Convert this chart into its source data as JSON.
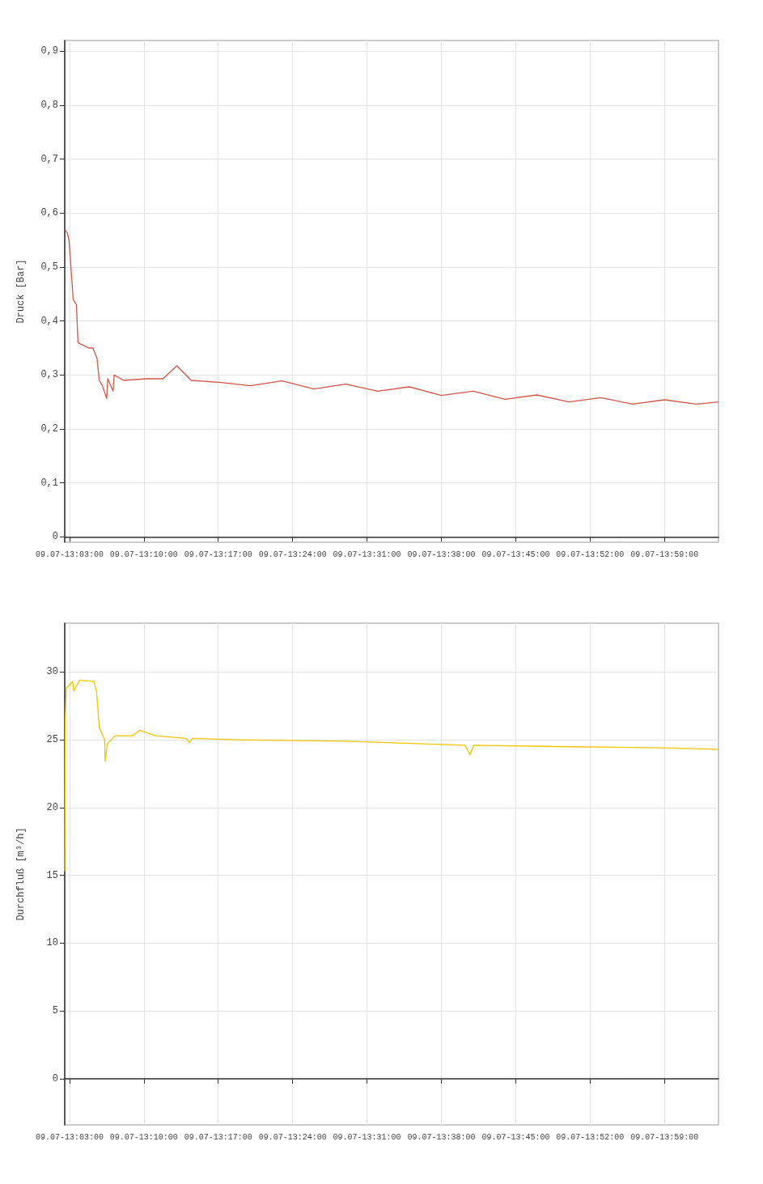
{
  "chart_data": [
    {
      "type": "line",
      "ylabel": "Druck [Bar]",
      "grid": true,
      "marker": "none",
      "line_style": "solid",
      "xlim": [
        "--07-09T13:02:33",
        "--07-09T14:04:05"
      ],
      "ylim": [
        -0.01,
        0.92
      ],
      "xticks": [
        {
          "value": "--07-09T13:03",
          "label": "09.07-13:03:00"
        },
        {
          "value": "--07-09T13:10",
          "label": "09.07-13:10:00"
        },
        {
          "value": "--07-09T13:17",
          "label": "09.07-13:17:00"
        },
        {
          "value": "--07-09T13:24",
          "label": "09.07-13:24:00"
        },
        {
          "value": "--07-09T13:31",
          "label": "09.07-13:31:00"
        },
        {
          "value": "--07-09T13:38",
          "label": "09.07-13:38:00"
        },
        {
          "value": "--07-09T13:45",
          "label": "09.07-13:45:00"
        },
        {
          "value": "--07-09T13:52",
          "label": "09.07-13:52:00"
        },
        {
          "value": "--07-09T13:59",
          "label": "09.07-13:59:00"
        }
      ],
      "yticks": [
        0,
        {
          "value": 0.1,
          "label": "0,1"
        },
        {
          "value": 0.2,
          "label": "0,2"
        },
        {
          "value": 0.3,
          "label": "0,3"
        },
        {
          "value": 0.4,
          "label": "0,4"
        },
        {
          "value": 0.5,
          "label": "0,5"
        },
        {
          "value": 0.6,
          "label": "0,6"
        },
        {
          "value": 0.7,
          "label": "0,7"
        },
        {
          "value": 0.8,
          "label": "0,8"
        },
        {
          "value": 0.9,
          "label": "0,9"
        }
      ],
      "series": [
        {
          "color": "#d0574a",
          "x": [
            "--07-09T13:02:33",
            "--07-09T13:02:48",
            "--07-09T13:02:57",
            "--07-09T13:03:21",
            "--07-09T13:03:39",
            "--07-09T13:03:48",
            "--07-09T13:04:48",
            "--07-09T13:05:12",
            "--07-09T13:05:36",
            "--07-09T13:05:48",
            "--07-09T13:06:06",
            "--07-09T13:06:30",
            "--07-09T13:06:36",
            "--07-09T13:07:06",
            "--07-09T13:07:12",
            "--07-09T13:08:06",
            "--07-09T13:10:18",
            "--07-09T13:11:48",
            "--07-09T13:13:06",
            "--07-09T13:14:27",
            "--07-09T13:17:18",
            "--07-09T13:20",
            "--07-09T13:23",
            "--07-09T13:26",
            "--07-09T13:29",
            "--07-09T13:32",
            "--07-09T13:35",
            "--07-09T13:38",
            "--07-09T13:41",
            "--07-09T13:44",
            "--07-09T13:47",
            "--07-09T13:50",
            "--07-09T13:53",
            "--07-09T13:56",
            "--07-09T13:59",
            "--07-09T14:02",
            "--07-09T14:04:05"
          ],
          "values": [
            0.57,
            0.563,
            0.55,
            0.44,
            0.43,
            0.36,
            0.35,
            0.35,
            0.33,
            0.29,
            0.28,
            0.256,
            0.293,
            0.27,
            0.3,
            0.29,
            0.293,
            0.293,
            0.317,
            0.29,
            0.286,
            0.28,
            0.289,
            0.274,
            0.283,
            0.27,
            0.278,
            0.262,
            0.27,
            0.255,
            0.263,
            0.25,
            0.258,
            0.246,
            0.254,
            0.246,
            0.25
          ]
        }
      ]
    },
    {
      "type": "line",
      "ylabel": "Durchfluß [m³/h]",
      "grid": true,
      "marker": "none",
      "line_style": "solid",
      "xlim": [
        "--07-09T13:02:33",
        "--07-09T14:04:05"
      ],
      "ylim": [
        -3.4,
        33.6
      ],
      "xticks": [
        {
          "value": "--07-09T13:03",
          "label": "09.07-13:03:00"
        },
        {
          "value": "--07-09T13:10",
          "label": "09.07-13:10:00"
        },
        {
          "value": "--07-09T13:17",
          "label": "09.07-13:17:00"
        },
        {
          "value": "--07-09T13:24",
          "label": "09.07-13:24:00"
        },
        {
          "value": "--07-09T13:31",
          "label": "09.07-13:31:00"
        },
        {
          "value": "--07-09T13:38",
          "label": "09.07-13:38:00"
        },
        {
          "value": "--07-09T13:45",
          "label": "09.07-13:45:00"
        },
        {
          "value": "--07-09T13:52",
          "label": "09.07-13:52:00"
        },
        {
          "value": "--07-09T13:59",
          "label": "09.07-13:59:00"
        }
      ],
      "yticks": [
        0,
        5,
        10,
        15,
        20,
        25,
        30
      ],
      "series": [
        {
          "color": "#f2c500",
          "x": [
            "--07-09T13:02:33",
            "--07-09T13:02:36",
            "--07-09T13:02:42",
            "--07-09T13:03:18",
            "--07-09T13:03:24",
            "--07-09T13:03:57",
            "--07-09T13:05:18",
            "--07-09T13:05:33",
            "--07-09T13:05:48",
            "--07-09T13:06:18",
            "--07-09T13:06:21",
            "--07-09T13:06:33",
            "--07-09T13:07:18",
            "--07-09T13:08:57",
            "--07-09T13:09:36",
            "--07-09T13:11:06",
            "--07-09T13:13:57",
            "--07-09T13:14:18",
            "--07-09T13:14:33",
            "--07-09T13:18:57",
            "--07-09T13:28:57",
            "--07-09T13:40:12",
            "--07-09T13:40:42",
            "--07-09T13:41:03",
            "--07-09T13:48:57",
            "--07-09T13:58:57",
            "--07-09T14:04:05"
          ],
          "values": [
            15.3,
            26.5,
            28.8,
            29.3,
            28.6,
            29.4,
            29.3,
            28.5,
            25.9,
            25.0,
            23.4,
            24.7,
            25.3,
            25.3,
            25.7,
            25.3,
            25.1,
            24.8,
            25.1,
            25.0,
            24.9,
            24.6,
            23.9,
            24.6,
            24.5,
            24.4,
            24.3
          ]
        }
      ]
    }
  ]
}
